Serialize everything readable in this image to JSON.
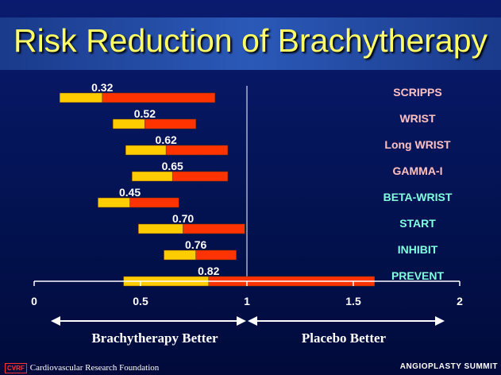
{
  "title": "Risk Reduction of Brachytherapy",
  "chart_data": {
    "type": "bar",
    "orientation": "horizontal",
    "description_style": "floating range bars split at point estimate",
    "xlim": [
      0,
      2
    ],
    "x_ticks": [
      "0",
      "0.5",
      "1",
      "1.5",
      "2"
    ],
    "reference_line": 1,
    "studies": [
      {
        "name": "SCRIPPS",
        "estimate": 0.32,
        "estimate_label": "0.32",
        "low": 0.12,
        "high": 0.85,
        "name_color": "#ffc0c0"
      },
      {
        "name": "WRIST",
        "estimate": 0.52,
        "estimate_label": "0.52",
        "low": 0.37,
        "high": 0.76,
        "name_color": "#ffc0c0"
      },
      {
        "name": "Long WRIST",
        "estimate": 0.62,
        "estimate_label": "0.62",
        "low": 0.43,
        "high": 0.91,
        "name_color": "#ffc0c0"
      },
      {
        "name": "GAMMA-I",
        "estimate": 0.65,
        "estimate_label": "0.65",
        "low": 0.46,
        "high": 0.91,
        "name_color": "#ffc0c0"
      },
      {
        "name": "BETA-WRIST",
        "estimate": 0.45,
        "estimate_label": "0.45",
        "low": 0.3,
        "high": 0.68,
        "name_color": "#80ffe0"
      },
      {
        "name": "START",
        "estimate": 0.7,
        "estimate_label": "0.70",
        "low": 0.49,
        "high": 0.99,
        "name_color": "#80ffe0"
      },
      {
        "name": "INHIBIT",
        "estimate": 0.76,
        "estimate_label": "0.76",
        "low": 0.61,
        "high": 0.95,
        "name_color": "#80ffe0"
      },
      {
        "name": "PREVENT",
        "estimate": 0.82,
        "estimate_label": "0.82",
        "low": 0.42,
        "high": 1.6,
        "name_color": "#80ffe0"
      }
    ],
    "colors": {
      "lower_segment": "#ffcc00",
      "upper_segment": "#ff3300",
      "axis": "#ffffff"
    }
  },
  "directions": {
    "left": "Brachytherapy Better",
    "right": "Placebo Better"
  },
  "footer": {
    "logo_text": "CVRF",
    "organization": "Cardiovascular Research Foundation",
    "event": "ANGIOPLASTY SUMMIT"
  }
}
